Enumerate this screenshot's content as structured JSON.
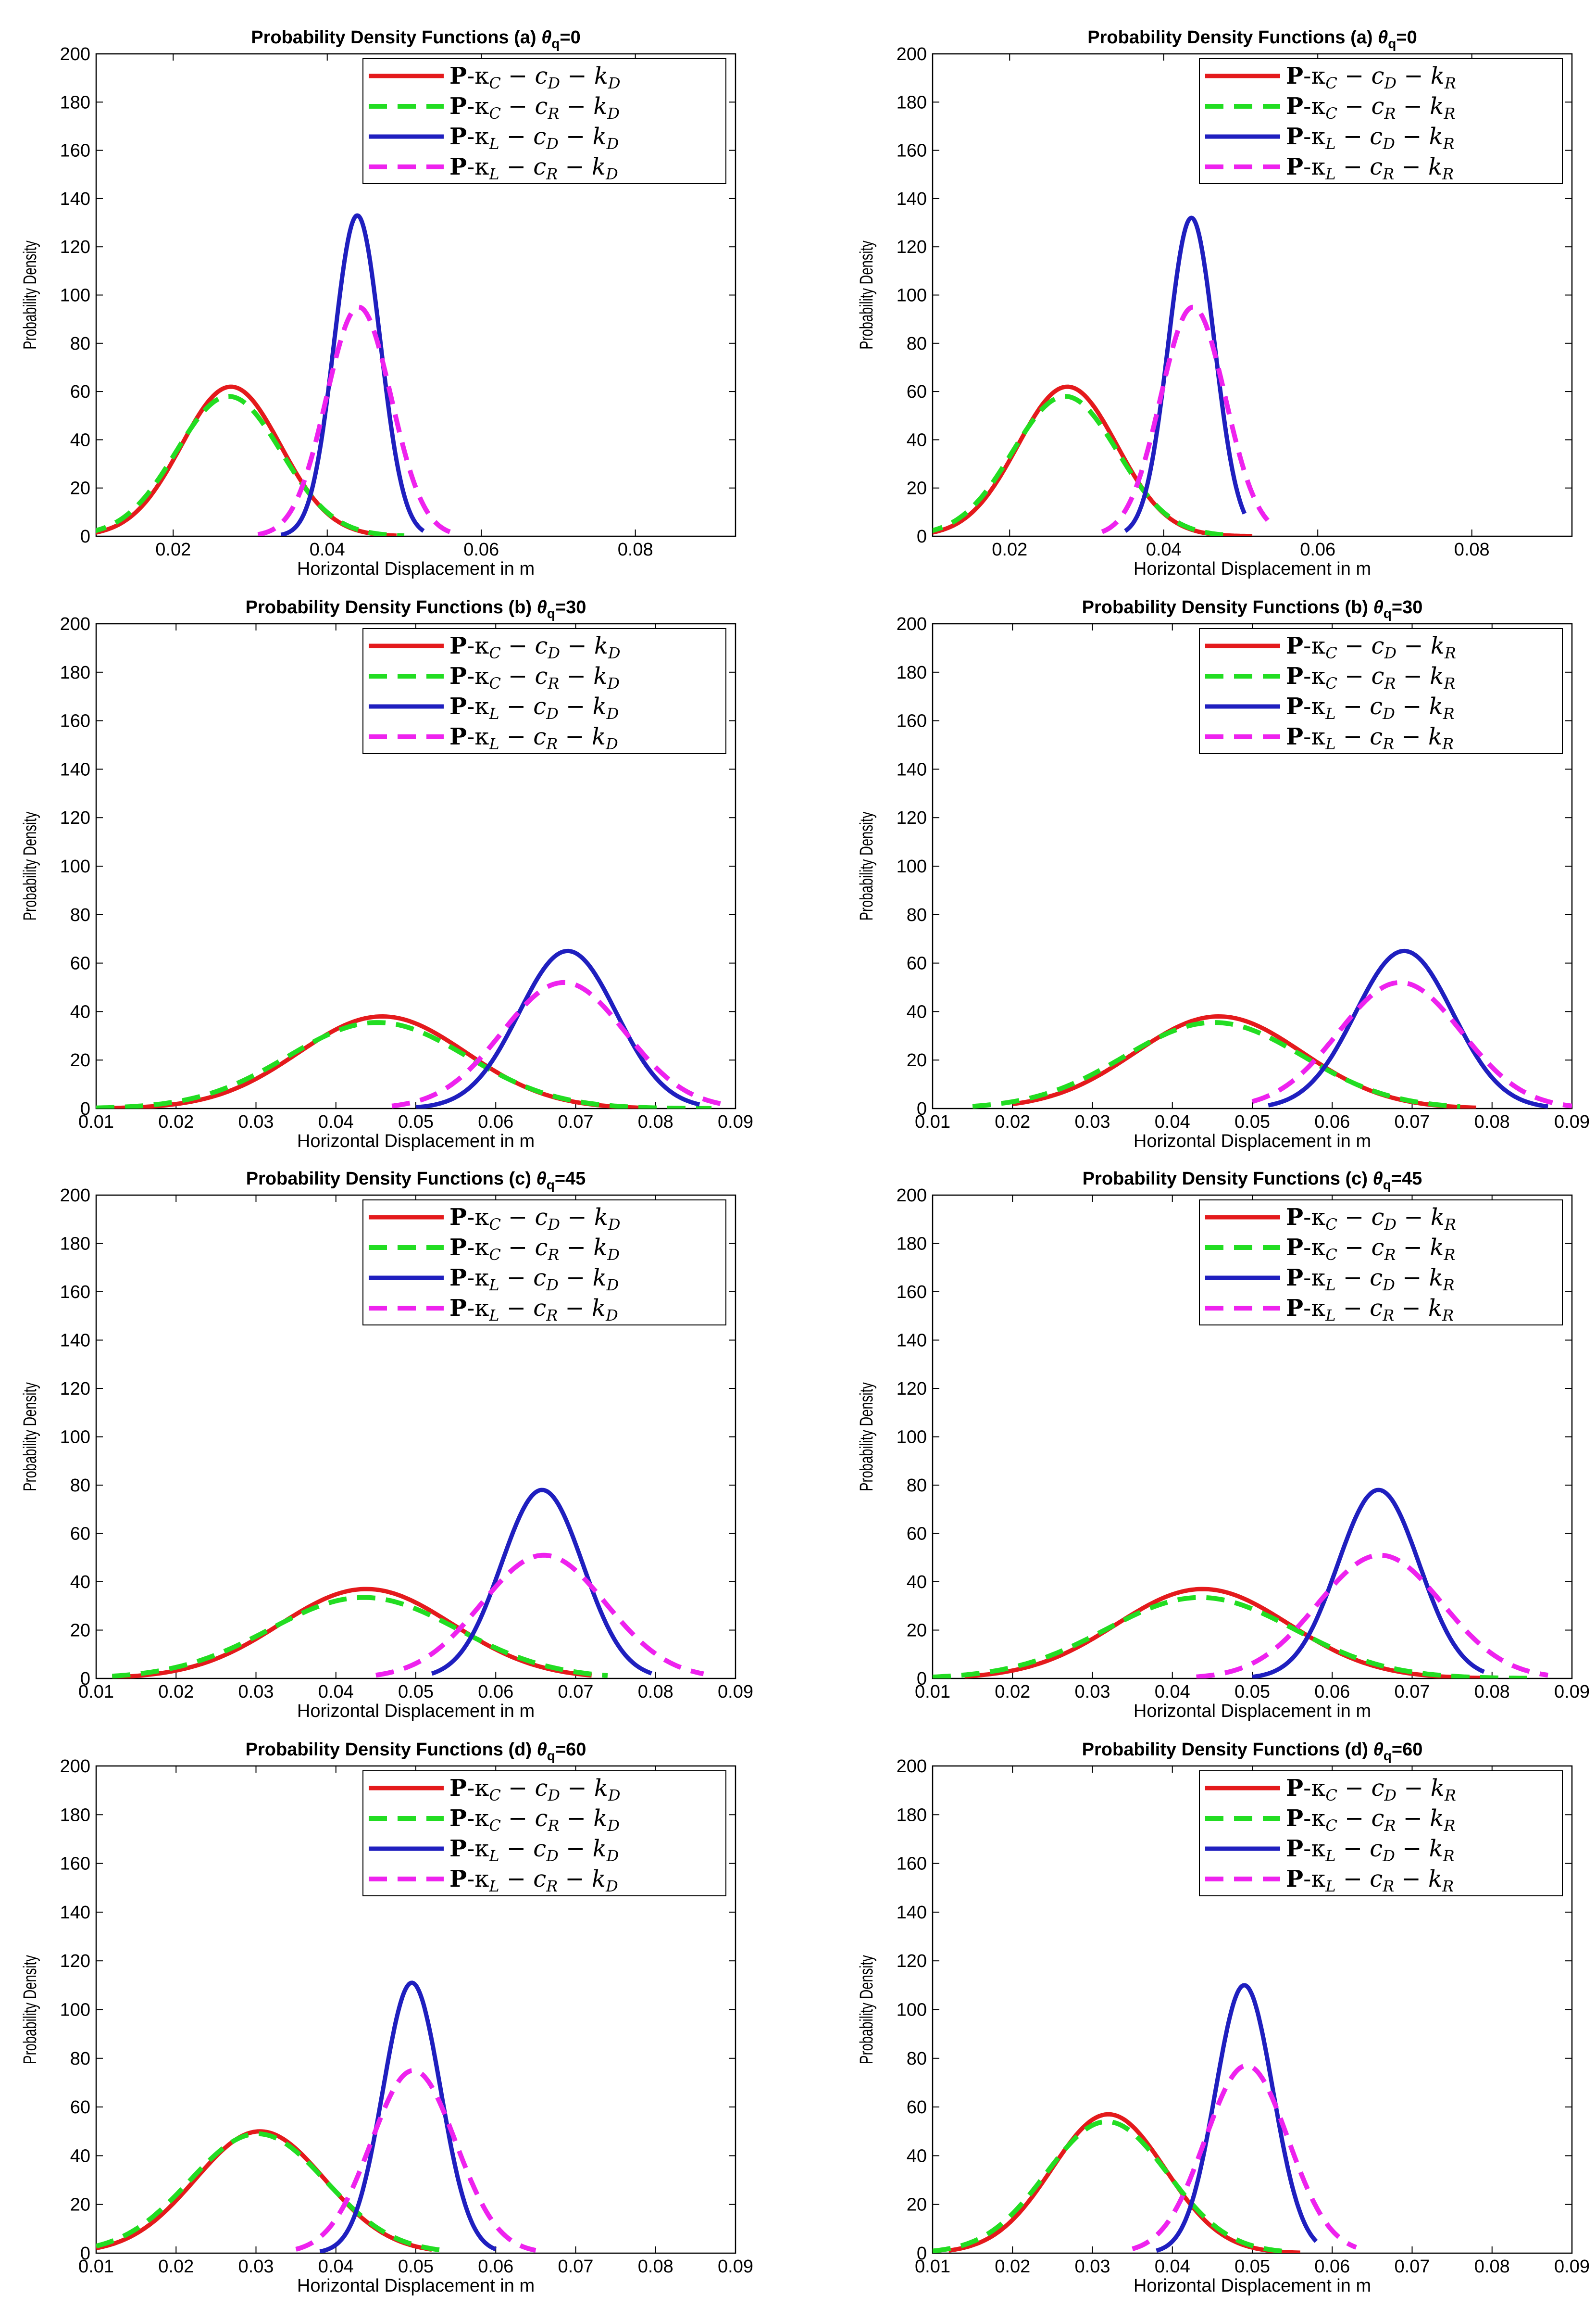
{
  "chart_data": [
    {
      "type": "line",
      "panel": "a",
      "title_prefix": "Probability Density Functions (a)",
      "theta": "θ",
      "theta_sub": "q",
      "theta_val": "=0",
      "xlabel": "Horizontal Displacement in m",
      "ylabel": "Probability Density",
      "xlim": [
        0.01,
        0.093
      ],
      "ylim": [
        0,
        200
      ],
      "xticks": [
        "0.02",
        "0.04",
        "0.06",
        "0.08"
      ],
      "yticks": [
        "0",
        "20",
        "40",
        "60",
        "80",
        "100",
        "120",
        "140",
        "160",
        "180",
        "200"
      ],
      "legend_suffix": "D",
      "series": [
        {
          "name": "P-κC − cD − kD",
          "kappa": "C",
          "c": "D",
          "color": "#e41a1c",
          "dash": false,
          "mu": 0.0275,
          "sigma": 0.00645,
          "peak": 62,
          "xmin": 0.009,
          "xmax": 0.049
        },
        {
          "name": "P-κC − cR − kD",
          "kappa": "C",
          "c": "R",
          "color": "#22dd22",
          "dash": true,
          "mu": 0.0272,
          "sigma": 0.0068,
          "peak": 58,
          "xmin": 0.009,
          "xmax": 0.05
        },
        {
          "name": "P-κL − cD − kD",
          "kappa": "L",
          "c": "D",
          "color": "#1f1fbf",
          "dash": false,
          "mu": 0.0439,
          "sigma": 0.003,
          "peak": 133,
          "xmin": 0.034,
          "xmax": 0.0525
        },
        {
          "name": "P-κL − cR − kD",
          "kappa": "L",
          "c": "R",
          "color": "#ee22ee",
          "dash": true,
          "mu": 0.0441,
          "sigma": 0.0042,
          "peak": 95,
          "xmin": 0.031,
          "xmax": 0.056
        }
      ]
    },
    {
      "type": "line",
      "panel": "a",
      "title_prefix": "Probability Density Functions (a)",
      "theta": "θ",
      "theta_sub": "q",
      "theta_val": "=0",
      "xlabel": "Horizontal Displacement in m",
      "ylabel": "Probability Density",
      "xlim": [
        0.01,
        0.093
      ],
      "ylim": [
        0,
        200
      ],
      "xticks": [
        "0.02",
        "0.04",
        "0.06",
        "0.08"
      ],
      "yticks": [
        "0",
        "20",
        "40",
        "60",
        "80",
        "100",
        "120",
        "140",
        "160",
        "180",
        "200"
      ],
      "legend_suffix": "R",
      "series": [
        {
          "name": "P-κC − cD − kR",
          "kappa": "C",
          "c": "D",
          "color": "#e41a1c",
          "dash": false,
          "mu": 0.0275,
          "sigma": 0.00645,
          "peak": 62,
          "xmin": 0.009,
          "xmax": 0.0515
        },
        {
          "name": "P-κC − cR − kR",
          "kappa": "C",
          "c": "R",
          "color": "#22dd22",
          "dash": true,
          "mu": 0.0272,
          "sigma": 0.0068,
          "peak": 58,
          "xmin": 0.009,
          "xmax": 0.048
        },
        {
          "name": "P-κL − cD − kR",
          "kappa": "L",
          "c": "D",
          "color": "#1f1fbf",
          "dash": false,
          "mu": 0.0436,
          "sigma": 0.003,
          "peak": 132,
          "xmin": 0.035,
          "xmax": 0.0505
        },
        {
          "name": "P-κL − cR − kR",
          "kappa": "L",
          "c": "R",
          "color": "#ee22ee",
          "dash": true,
          "mu": 0.0438,
          "sigma": 0.0042,
          "peak": 95,
          "xmin": 0.032,
          "xmax": 0.0535
        }
      ]
    },
    {
      "type": "line",
      "panel": "b",
      "title_prefix": "Probability Density Functions (b)",
      "theta": "θ",
      "theta_sub": "q",
      "theta_val": "=30",
      "xlabel": "Horizontal Displacement in m",
      "ylabel": "Probability Density",
      "xlim": [
        0.01,
        0.09
      ],
      "ylim": [
        0,
        200
      ],
      "xticks": [
        "0.01",
        "0.02",
        "0.03",
        "0.04",
        "0.05",
        "0.06",
        "0.07",
        "0.08",
        "0.09"
      ],
      "yticks": [
        "0",
        "20",
        "40",
        "60",
        "80",
        "100",
        "120",
        "140",
        "160",
        "180",
        "200"
      ],
      "legend_suffix": "D",
      "series": [
        {
          "name": "P-κC − cD − kD",
          "kappa": "C",
          "c": "D",
          "color": "#e41a1c",
          "dash": false,
          "mu": 0.0458,
          "sigma": 0.0105,
          "peak": 38,
          "xmin": 0.01,
          "xmax": 0.08
        },
        {
          "name": "P-κC − cR − kD",
          "kappa": "C",
          "c": "R",
          "color": "#22dd22",
          "dash": true,
          "mu": 0.0452,
          "sigma": 0.0112,
          "peak": 35.5,
          "xmin": 0.01,
          "xmax": 0.087
        },
        {
          "name": "P-κL − cD − kD",
          "kappa": "L",
          "c": "D",
          "color": "#1f1fbf",
          "dash": false,
          "mu": 0.069,
          "sigma": 0.0061,
          "peak": 65,
          "xmin": 0.05,
          "xmax": 0.0855
        },
        {
          "name": "P-κL − cR − kD",
          "kappa": "L",
          "c": "R",
          "color": "#ee22ee",
          "dash": true,
          "mu": 0.0685,
          "sigma": 0.0077,
          "peak": 52,
          "xmin": 0.047,
          "xmax": 0.0885
        }
      ]
    },
    {
      "type": "line",
      "panel": "b",
      "title_prefix": "Probability Density Functions (b)",
      "theta": "θ",
      "theta_sub": "q",
      "theta_val": "=30",
      "xlabel": "Horizontal Displacement in m",
      "ylabel": "Probability Density",
      "xlim": [
        0.01,
        0.09
      ],
      "ylim": [
        0,
        200
      ],
      "xticks": [
        "0.01",
        "0.02",
        "0.03",
        "0.04",
        "0.05",
        "0.06",
        "0.07",
        "0.08",
        "0.09"
      ],
      "yticks": [
        "0",
        "20",
        "40",
        "60",
        "80",
        "100",
        "120",
        "140",
        "160",
        "180",
        "200"
      ],
      "legend_suffix": "R",
      "series": [
        {
          "name": "P-κC − cD − kR",
          "kappa": "C",
          "c": "D",
          "color": "#e41a1c",
          "dash": false,
          "mu": 0.0458,
          "sigma": 0.0105,
          "peak": 38,
          "xmin": 0.02,
          "xmax": 0.078
        },
        {
          "name": "P-κC − cR − kR",
          "kappa": "C",
          "c": "R",
          "color": "#22dd22",
          "dash": true,
          "mu": 0.0452,
          "sigma": 0.0112,
          "peak": 35.5,
          "xmin": 0.015,
          "xmax": 0.076
        },
        {
          "name": "P-κL − cD − kR",
          "kappa": "L",
          "c": "D",
          "color": "#1f1fbf",
          "dash": false,
          "mu": 0.069,
          "sigma": 0.0061,
          "peak": 65,
          "xmin": 0.052,
          "xmax": 0.087
        },
        {
          "name": "P-κL − cR − kR",
          "kappa": "L",
          "c": "R",
          "color": "#ee22ee",
          "dash": true,
          "mu": 0.0685,
          "sigma": 0.0077,
          "peak": 52,
          "xmin": 0.05,
          "xmax": 0.09
        }
      ]
    },
    {
      "type": "line",
      "panel": "c",
      "title_prefix": "Probability Density Functions (c)",
      "theta": "θ",
      "theta_sub": "q",
      "theta_val": "=45",
      "xlabel": "Horizontal Displacement in m",
      "ylabel": "Probability Density",
      "xlim": [
        0.01,
        0.09
      ],
      "ylim": [
        0,
        200
      ],
      "xticks": [
        "0.01",
        "0.02",
        "0.03",
        "0.04",
        "0.05",
        "0.06",
        "0.07",
        "0.08",
        "0.09"
      ],
      "yticks": [
        "0",
        "20",
        "40",
        "60",
        "80",
        "100",
        "120",
        "140",
        "160",
        "180",
        "200"
      ],
      "legend_suffix": "D",
      "series": [
        {
          "name": "P-κC − cD − kD",
          "kappa": "C",
          "c": "D",
          "color": "#e41a1c",
          "dash": false,
          "mu": 0.0438,
          "sigma": 0.0108,
          "peak": 37,
          "xmin": 0.012,
          "xmax": 0.072
        },
        {
          "name": "P-κC − cR − kD",
          "kappa": "C",
          "c": "R",
          "color": "#22dd22",
          "dash": true,
          "mu": 0.0435,
          "sigma": 0.0118,
          "peak": 33.5,
          "xmin": 0.012,
          "xmax": 0.074
        },
        {
          "name": "P-κL − cD − kD",
          "kappa": "L",
          "c": "D",
          "color": "#1f1fbf",
          "dash": false,
          "mu": 0.0658,
          "sigma": 0.0051,
          "peak": 78,
          "xmin": 0.052,
          "xmax": 0.0795
        },
        {
          "name": "P-κL − cR − kD",
          "kappa": "L",
          "c": "R",
          "color": "#ee22ee",
          "dash": true,
          "mu": 0.066,
          "sigma": 0.0078,
          "peak": 51,
          "xmin": 0.045,
          "xmax": 0.086
        }
      ]
    },
    {
      "type": "line",
      "panel": "c",
      "title_prefix": "Probability Density Functions (c)",
      "theta": "θ",
      "theta_sub": "q",
      "theta_val": "=45",
      "xlabel": "Horizontal Displacement in m",
      "ylabel": "Probability Density",
      "xlim": [
        0.01,
        0.09
      ],
      "ylim": [
        0,
        200
      ],
      "xticks": [
        "0.01",
        "0.02",
        "0.03",
        "0.04",
        "0.05",
        "0.06",
        "0.07",
        "0.08",
        "0.09"
      ],
      "yticks": [
        "0",
        "20",
        "40",
        "60",
        "80",
        "100",
        "120",
        "140",
        "160",
        "180",
        "200"
      ],
      "legend_suffix": "R",
      "series": [
        {
          "name": "P-κC − cD − kR",
          "kappa": "C",
          "c": "D",
          "color": "#e41a1c",
          "dash": false,
          "mu": 0.0438,
          "sigma": 0.0108,
          "peak": 37,
          "xmin": 0.014,
          "xmax": 0.08
        },
        {
          "name": "P-κC − cR − kR",
          "kappa": "C",
          "c": "R",
          "color": "#22dd22",
          "dash": true,
          "mu": 0.0435,
          "sigma": 0.0118,
          "peak": 33.5,
          "xmin": 0.01,
          "xmax": 0.085
        },
        {
          "name": "P-κL − cD − kR",
          "kappa": "L",
          "c": "D",
          "color": "#1f1fbf",
          "dash": false,
          "mu": 0.0658,
          "sigma": 0.0051,
          "peak": 78,
          "xmin": 0.05,
          "xmax": 0.079
        },
        {
          "name": "P-κL − cR − kR",
          "kappa": "L",
          "c": "R",
          "color": "#ee22ee",
          "dash": true,
          "mu": 0.066,
          "sigma": 0.0078,
          "peak": 51,
          "xmin": 0.043,
          "xmax": 0.087
        }
      ]
    },
    {
      "type": "line",
      "panel": "d",
      "title_prefix": "Probability Density Functions (d)",
      "theta": "θ",
      "theta_sub": "q",
      "theta_val": "=60",
      "xlabel": "Horizontal Displacement in m",
      "ylabel": "Probability Density",
      "xlim": [
        0.01,
        0.09
      ],
      "ylim": [
        0,
        200
      ],
      "xticks": [
        "0.01",
        "0.02",
        "0.03",
        "0.04",
        "0.05",
        "0.06",
        "0.07",
        "0.08",
        "0.09"
      ],
      "yticks": [
        "0",
        "20",
        "40",
        "60",
        "80",
        "100",
        "120",
        "140",
        "160",
        "180",
        "200"
      ],
      "legend_suffix": "D",
      "series": [
        {
          "name": "P-κC − cD − kD",
          "kappa": "C",
          "c": "D",
          "color": "#e41a1c",
          "dash": false,
          "mu": 0.0305,
          "sigma": 0.0081,
          "peak": 50,
          "xmin": 0.01,
          "xmax": 0.052
        },
        {
          "name": "P-κC − cR − kD",
          "kappa": "C",
          "c": "R",
          "color": "#22dd22",
          "dash": true,
          "mu": 0.0302,
          "sigma": 0.0085,
          "peak": 49,
          "xmin": 0.01,
          "xmax": 0.054
        },
        {
          "name": "P-κL − cD − kD",
          "kappa": "L",
          "c": "D",
          "color": "#1f1fbf",
          "dash": false,
          "mu": 0.0495,
          "sigma": 0.0036,
          "peak": 111,
          "xmin": 0.038,
          "xmax": 0.06
        },
        {
          "name": "P-κL − cR − kD",
          "kappa": "L",
          "c": "R",
          "color": "#ee22ee",
          "dash": true,
          "mu": 0.0497,
          "sigma": 0.0053,
          "peak": 75,
          "xmin": 0.035,
          "xmax": 0.065
        }
      ]
    },
    {
      "type": "line",
      "panel": "d",
      "title_prefix": "Probability Density Functions (d)",
      "theta": "θ",
      "theta_sub": "q",
      "theta_val": "=60",
      "xlabel": "Horizontal Displacement in m",
      "ylabel": "Probability Density",
      "xlim": [
        0.01,
        0.09
      ],
      "ylim": [
        0,
        200
      ],
      "xticks": [
        "0.01",
        "0.02",
        "0.03",
        "0.04",
        "0.05",
        "0.06",
        "0.07",
        "0.08",
        "0.09"
      ],
      "yticks": [
        "0",
        "20",
        "40",
        "60",
        "80",
        "100",
        "120",
        "140",
        "160",
        "180",
        "200"
      ],
      "legend_suffix": "R",
      "series": [
        {
          "name": "P-κC − cD − kR",
          "kappa": "C",
          "c": "D",
          "color": "#e41a1c",
          "dash": false,
          "mu": 0.032,
          "sigma": 0.0071,
          "peak": 57,
          "xmin": 0.012,
          "xmax": 0.056
        },
        {
          "name": "P-κC − cR − kR",
          "kappa": "C",
          "c": "R",
          "color": "#22dd22",
          "dash": true,
          "mu": 0.0318,
          "sigma": 0.0076,
          "peak": 54,
          "xmin": 0.01,
          "xmax": 0.055
        },
        {
          "name": "P-κL − cD − kR",
          "kappa": "L",
          "c": "D",
          "color": "#1f1fbf",
          "dash": false,
          "mu": 0.049,
          "sigma": 0.0036,
          "peak": 110,
          "xmin": 0.038,
          "xmax": 0.058
        },
        {
          "name": "P-κL − cR − kR",
          "kappa": "L",
          "c": "R",
          "color": "#ee22ee",
          "dash": true,
          "mu": 0.0493,
          "sigma": 0.0052,
          "peak": 77,
          "xmin": 0.035,
          "xmax": 0.063
        }
      ]
    }
  ]
}
